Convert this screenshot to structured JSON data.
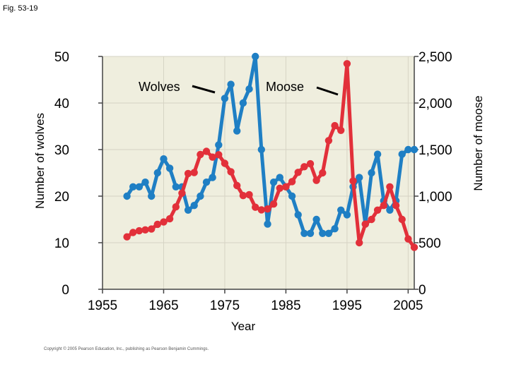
{
  "figure_label": "Fig. 53-19",
  "copyright": "Copyright © 2005 Pearson Education, Inc., publishing as Pearson Benjamin Cummings.",
  "colors": {
    "plot_bg": "#efeede",
    "grid": "#d6d3c4",
    "wolves": "#1f7fc4",
    "moose": "#e2303a"
  },
  "chart_data": {
    "type": "line",
    "xlabel": "Year",
    "ylabel_left": "Number of wolves",
    "ylabel_right": "Number of moose",
    "xlim": [
      1955,
      2006
    ],
    "ylim_left": [
      0,
      50
    ],
    "ylim_right": [
      0,
      2500
    ],
    "x_ticks": [
      "1955",
      "1965",
      "1975",
      "1985",
      "1995",
      "2005"
    ],
    "y_ticks_left": [
      "0",
      "10",
      "20",
      "30",
      "40",
      "50"
    ],
    "y_ticks_right": [
      "0",
      "500",
      "1,000",
      "1,500",
      "2,000",
      "2,500"
    ],
    "grid": true,
    "annotations": [
      {
        "text": "Wolves",
        "series": "Wolves"
      },
      {
        "text": "Moose",
        "series": "Moose"
      }
    ],
    "series": [
      {
        "name": "Wolves",
        "axis": "left",
        "color": "#1f7fc4",
        "points": [
          [
            1959,
            20
          ],
          [
            1960,
            22
          ],
          [
            1961,
            22
          ],
          [
            1962,
            23
          ],
          [
            1963,
            20
          ],
          [
            1964,
            25
          ],
          [
            1965,
            28
          ],
          [
            1966,
            26
          ],
          [
            1967,
            22
          ],
          [
            1968,
            22
          ],
          [
            1969,
            17
          ],
          [
            1970,
            18
          ],
          [
            1971,
            20
          ],
          [
            1972,
            23
          ],
          [
            1973,
            24
          ],
          [
            1974,
            31
          ],
          [
            1975,
            41
          ],
          [
            1976,
            44
          ],
          [
            1977,
            34
          ],
          [
            1978,
            40
          ],
          [
            1979,
            43
          ],
          [
            1980,
            50
          ],
          [
            1981,
            30
          ],
          [
            1982,
            14
          ],
          [
            1983,
            23
          ],
          [
            1984,
            24
          ],
          [
            1985,
            22
          ],
          [
            1986,
            20
          ],
          [
            1987,
            16
          ],
          [
            1988,
            12
          ],
          [
            1989,
            12
          ],
          [
            1990,
            15
          ],
          [
            1991,
            12
          ],
          [
            1992,
            12
          ],
          [
            1993,
            13
          ],
          [
            1994,
            17
          ],
          [
            1995,
            16
          ],
          [
            1996,
            22
          ],
          [
            1997,
            24
          ],
          [
            1998,
            14
          ],
          [
            1999,
            25
          ],
          [
            2000,
            29
          ],
          [
            2001,
            19
          ],
          [
            2002,
            17
          ],
          [
            2003,
            19
          ],
          [
            2004,
            29
          ],
          [
            2005,
            30
          ],
          [
            2006,
            30
          ]
        ]
      },
      {
        "name": "Moose",
        "axis": "right",
        "color": "#e2303a",
        "points": [
          [
            1959,
            563
          ],
          [
            1960,
            610
          ],
          [
            1961,
            628
          ],
          [
            1962,
            638
          ],
          [
            1963,
            647
          ],
          [
            1964,
            698
          ],
          [
            1965,
            723
          ],
          [
            1966,
            757
          ],
          [
            1967,
            885
          ],
          [
            1968,
            1032
          ],
          [
            1969,
            1243
          ],
          [
            1970,
            1253
          ],
          [
            1971,
            1447
          ],
          [
            1972,
            1481
          ],
          [
            1973,
            1419
          ],
          [
            1974,
            1445
          ],
          [
            1975,
            1352
          ],
          [
            1976,
            1262
          ],
          [
            1977,
            1114
          ],
          [
            1978,
            1006
          ],
          [
            1979,
            1016
          ],
          [
            1980,
            881
          ],
          [
            1981,
            853
          ],
          [
            1982,
            862
          ],
          [
            1983,
            915
          ],
          [
            1984,
            1085
          ],
          [
            1985,
            1100
          ],
          [
            1986,
            1156
          ],
          [
            1987,
            1255
          ],
          [
            1988,
            1316
          ],
          [
            1989,
            1348
          ],
          [
            1990,
            1169
          ],
          [
            1991,
            1250
          ],
          [
            1992,
            1596
          ],
          [
            1993,
            1757
          ],
          [
            1994,
            1706
          ],
          [
            1995,
            2422
          ],
          [
            1996,
            1164
          ],
          [
            1997,
            500
          ],
          [
            1998,
            700
          ],
          [
            1999,
            750
          ],
          [
            2000,
            850
          ],
          [
            2001,
            900
          ],
          [
            2002,
            1100
          ],
          [
            2003,
            900
          ],
          [
            2004,
            750
          ],
          [
            2005,
            540
          ],
          [
            2006,
            450
          ]
        ]
      }
    ]
  }
}
